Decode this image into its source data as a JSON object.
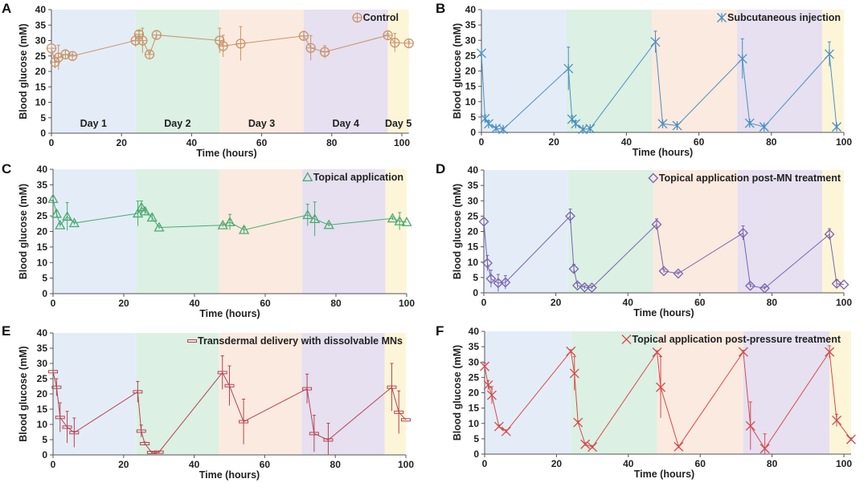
{
  "figure": {
    "day_band_colors": [
      "#e4edf7",
      "#dcf0e4",
      "#fbeadf",
      "#e6e0f0",
      "#fdf5d8"
    ],
    "day_band_boundaries_hours": [
      0,
      24,
      48,
      72,
      96
    ],
    "axis_color": "#555555"
  },
  "chart_data": [
    {
      "id": "A",
      "panel_label": "A",
      "type": "line",
      "title": "",
      "xlabel": "Time (hours)",
      "ylabel": "Blood glucose (mM)",
      "xlim": [
        0,
        102
      ],
      "ylim": [
        0,
        40
      ],
      "xticks": [
        0,
        20,
        40,
        60,
        80,
        100
      ],
      "yticks": [
        0,
        5,
        10,
        15,
        20,
        25,
        30,
        35,
        40
      ],
      "grid": false,
      "legend": {
        "position": "top-right",
        "marker": "circle-plus"
      },
      "day_bands": [
        [
          0,
          24
        ],
        [
          24,
          48
        ],
        [
          48,
          72
        ],
        [
          72,
          96
        ],
        [
          96,
          102
        ]
      ],
      "day_labels": [
        {
          "text": "Day 1",
          "x": 12
        },
        {
          "text": "Day 2",
          "x": 36
        },
        {
          "text": "Day 3",
          "x": 60
        },
        {
          "text": "Day 4",
          "x": 84
        },
        {
          "text": "Day 5",
          "x": 99
        }
      ],
      "series": [
        {
          "name": "Control",
          "color": "#c8946a",
          "marker": "circle-plus",
          "x": [
            0,
            1,
            2,
            4,
            6,
            24,
            25,
            26,
            28,
            30,
            48,
            49,
            54,
            72,
            74,
            78,
            96,
            98,
            102
          ],
          "y": [
            27.5,
            23,
            24.5,
            25.5,
            25,
            30,
            32,
            30,
            25.5,
            31.8,
            30,
            28.2,
            29,
            31.5,
            27.6,
            26.3,
            31.7,
            29.3,
            29.1
          ],
          "err": [
            0,
            2,
            4,
            1.5,
            0.5,
            2,
            1,
            4,
            0,
            0,
            4,
            3.5,
            5.5,
            1.5,
            4,
            2,
            0.5,
            3,
            0.5
          ]
        }
      ]
    },
    {
      "id": "B",
      "panel_label": "B",
      "type": "line",
      "xlabel": "Time (hours)",
      "ylabel": "Blood glucose (mM)",
      "xlim": [
        0,
        100
      ],
      "ylim": [
        0,
        40
      ],
      "xticks": [
        0,
        20,
        40,
        60,
        80,
        100
      ],
      "yticks": [
        0,
        5,
        10,
        15,
        20,
        25,
        30,
        35,
        40
      ],
      "grid": false,
      "legend": {
        "position": "top-right",
        "marker": "star"
      },
      "day_bands": [
        [
          0,
          23.5
        ],
        [
          23.5,
          47
        ],
        [
          47,
          70.5
        ],
        [
          70.5,
          94
        ],
        [
          94,
          100
        ]
      ],
      "series": [
        {
          "name": "Subcutaneous injection",
          "color": "#4a8fc2",
          "marker": "star",
          "x": [
            0,
            1,
            2,
            4,
            6,
            24,
            25,
            26,
            28,
            30,
            48,
            50,
            54,
            72,
            74,
            78,
            96,
            98
          ],
          "y": [
            25.8,
            4.5,
            2.8,
            1.3,
            1,
            20.8,
            4.3,
            2.8,
            1,
            1.2,
            29.5,
            2.8,
            2.2,
            24,
            3,
            1.8,
            25.5,
            1.8
          ],
          "err": [
            0,
            1,
            1,
            0.5,
            0.5,
            7,
            1,
            1,
            0.3,
            0.5,
            3.5,
            0.5,
            0.5,
            6.5,
            0.5,
            0.5,
            4,
            0.5
          ]
        }
      ]
    },
    {
      "id": "C",
      "panel_label": "C",
      "type": "line",
      "xlabel": "Time (hours)",
      "ylabel": "Blood glucose (mM)",
      "xlim": [
        0,
        100
      ],
      "ylim": [
        0,
        40
      ],
      "xticks": [
        0,
        20,
        40,
        60,
        80,
        100
      ],
      "yticks": [
        0,
        5,
        10,
        15,
        20,
        25,
        30,
        35,
        40
      ],
      "grid": false,
      "legend": {
        "position": "top-right",
        "marker": "triangle"
      },
      "day_bands": [
        [
          0,
          23.5
        ],
        [
          23.5,
          47
        ],
        [
          47,
          70.5
        ],
        [
          70.5,
          94
        ],
        [
          94,
          100
        ]
      ],
      "series": [
        {
          "name": "Topical application",
          "color": "#4aaa72",
          "marker": "triangle",
          "x": [
            0,
            1,
            2,
            4,
            6,
            24,
            25,
            26,
            28,
            30,
            48,
            50,
            54,
            72,
            74,
            78,
            96,
            98,
            100
          ],
          "y": [
            30.5,
            25.7,
            22,
            24.8,
            22.7,
            25.8,
            27.8,
            26.5,
            24.5,
            21.3,
            22,
            23,
            20.5,
            25.3,
            24,
            22.1,
            24.2,
            23.3,
            23
          ],
          "err": [
            0,
            1,
            0.5,
            4.5,
            0.5,
            4,
            2,
            1,
            1,
            0.5,
            0.5,
            2.5,
            1,
            3.5,
            5.5,
            0.5,
            0.5,
            2.8,
            0
          ]
        }
      ]
    },
    {
      "id": "D",
      "panel_label": "D",
      "type": "line",
      "xlabel": "Time (hours)",
      "ylabel": "Blood glucose (mM)",
      "xlim": [
        0,
        100
      ],
      "ylim": [
        0,
        40
      ],
      "xticks": [
        0,
        20,
        40,
        60,
        80,
        100
      ],
      "yticks": [
        0,
        5,
        10,
        15,
        20,
        25,
        30,
        35,
        40
      ],
      "grid": false,
      "legend": {
        "position": "top-right",
        "marker": "diamond"
      },
      "day_bands": [
        [
          0,
          23.5
        ],
        [
          23.5,
          47
        ],
        [
          47,
          70.5
        ],
        [
          70.5,
          94
        ],
        [
          94,
          100
        ]
      ],
      "series": [
        {
          "name": "Topical application post-MN treatment",
          "color": "#7a62b0",
          "marker": "diamond",
          "x": [
            0,
            1,
            2,
            4,
            6,
            24,
            25,
            26,
            28,
            30,
            48,
            50,
            54,
            72,
            74,
            78,
            96,
            98,
            100
          ],
          "y": [
            23.2,
            9.7,
            4.6,
            3.2,
            3.4,
            25,
            7.8,
            2.4,
            1.8,
            1.7,
            22.3,
            7.1,
            6.3,
            19.5,
            2.3,
            1.5,
            19.1,
            3,
            2.7
          ],
          "err": [
            0,
            2.5,
            2.8,
            2.8,
            2.2,
            2.3,
            1.5,
            0.8,
            0.5,
            0.5,
            1.8,
            0.5,
            0.5,
            2.3,
            0.5,
            0.5,
            1.8,
            1.3,
            0
          ]
        }
      ]
    },
    {
      "id": "E",
      "panel_label": "E",
      "type": "line",
      "xlabel": "Time (hours)",
      "ylabel": "Blood glucose (mM)",
      "xlim": [
        0,
        100
      ],
      "ylim": [
        0,
        40
      ],
      "xticks": [
        0,
        20,
        40,
        60,
        80,
        100
      ],
      "yticks": [
        0,
        5,
        10,
        15,
        20,
        25,
        30,
        35,
        40
      ],
      "grid": false,
      "legend": {
        "position": "top-right",
        "marker": "dash"
      },
      "day_bands": [
        [
          0,
          23.5
        ],
        [
          23.5,
          47
        ],
        [
          47,
          70.5
        ],
        [
          70.5,
          94
        ],
        [
          94,
          100
        ]
      ],
      "series": [
        {
          "name": "Transdermal delivery with dissolvable MNs",
          "color": "#b8434f",
          "marker": "dash",
          "x": [
            0,
            1,
            2,
            4,
            6,
            24,
            25,
            26,
            28,
            30,
            48,
            50,
            54,
            72,
            74,
            78,
            96,
            98,
            100
          ],
          "y": [
            27.3,
            22.2,
            12.3,
            9.1,
            7.3,
            20.7,
            7.8,
            3.7,
            0.8,
            0.9,
            27,
            22.7,
            10.9,
            21.7,
            7,
            4.9,
            22.2,
            14,
            11.5
          ],
          "err": [
            0,
            2.8,
            4.8,
            5.2,
            4.8,
            3.4,
            2,
            0.5,
            0.3,
            0.3,
            5.5,
            6.5,
            7.4,
            4.8,
            6,
            5.5,
            7.8,
            7,
            0
          ]
        }
      ]
    },
    {
      "id": "F",
      "panel_label": "F",
      "type": "line",
      "xlabel": "Time (hours)",
      "ylabel": "Blood glucose (mM)",
      "xlim": [
        0,
        102
      ],
      "ylim": [
        0,
        40
      ],
      "xticks": [
        0,
        20,
        40,
        60,
        80,
        100
      ],
      "yticks": [
        0,
        5,
        10,
        15,
        20,
        25,
        30,
        35,
        40
      ],
      "grid": false,
      "legend": {
        "position": "top-right",
        "marker": "x"
      },
      "day_bands": [
        [
          0,
          24
        ],
        [
          24,
          48
        ],
        [
          48,
          72
        ],
        [
          72,
          96
        ],
        [
          96,
          102
        ]
      ],
      "series": [
        {
          "name": "Topical application post-pressure treatment",
          "color": "#d64a4a",
          "marker": "x",
          "x": [
            0,
            1,
            2,
            4,
            6,
            24,
            25,
            26,
            28,
            30,
            48,
            49,
            54,
            72,
            74,
            78,
            96,
            98,
            102
          ],
          "y": [
            28.6,
            22.5,
            19.2,
            9,
            7.4,
            33.5,
            26.3,
            10.3,
            3.2,
            2.3,
            33.2,
            21.8,
            2.4,
            33.3,
            9.2,
            1.8,
            33.3,
            11,
            4.8
          ],
          "err": [
            1,
            1.5,
            2.8,
            0.5,
            0.5,
            0.5,
            5.5,
            0.5,
            0.5,
            0.5,
            0.5,
            10,
            0.5,
            0.5,
            7.8,
            4.8,
            2,
            2,
            0.5
          ]
        }
      ]
    }
  ]
}
